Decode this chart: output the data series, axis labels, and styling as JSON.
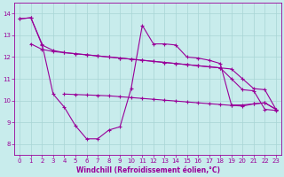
{
  "color": "#990099",
  "bg_color": "#c8ecec",
  "grid_color": "#a8d4d4",
  "xlabel": "Windchill (Refroidissement éolien,°C)",
  "ylim": [
    7.5,
    14.5
  ],
  "xlim": [
    -0.5,
    23.5
  ],
  "xticks": [
    0,
    1,
    2,
    3,
    4,
    5,
    6,
    7,
    8,
    9,
    10,
    11,
    12,
    13,
    14,
    15,
    16,
    17,
    18,
    19,
    20,
    21,
    22,
    23
  ],
  "yticks": [
    8,
    9,
    10,
    11,
    12,
    13,
    14
  ],
  "line_upper_x": [
    0,
    1,
    2,
    3,
    4,
    5,
    6,
    7,
    8,
    9,
    10,
    11,
    12,
    13,
    14,
    15,
    16,
    17,
    18,
    19,
    20,
    21,
    22,
    23
  ],
  "line_upper_y": [
    13.75,
    13.8,
    12.55,
    12.3,
    12.2,
    12.15,
    12.1,
    12.05,
    12.0,
    11.95,
    11.9,
    11.85,
    11.8,
    11.75,
    11.7,
    11.65,
    11.6,
    11.55,
    11.5,
    11.45,
    11.0,
    10.55,
    10.5,
    9.6
  ],
  "line_mid_x": [
    1,
    2,
    3,
    4,
    5,
    6,
    7,
    8,
    9,
    10,
    11,
    12,
    13,
    14,
    15,
    16,
    17,
    18,
    19,
    20,
    21,
    22,
    23
  ],
  "line_mid_y": [
    12.6,
    12.35,
    12.25,
    12.2,
    12.15,
    12.1,
    12.05,
    12.0,
    11.95,
    11.9,
    11.85,
    11.8,
    11.75,
    11.7,
    11.65,
    11.6,
    11.55,
    11.5,
    11.0,
    10.5,
    10.45,
    9.6,
    9.55
  ],
  "line_zigzag_x": [
    0,
    1,
    2,
    3,
    4,
    5,
    6,
    7,
    8,
    9,
    10,
    11,
    12,
    13,
    14,
    15,
    16,
    17,
    18,
    19,
    20,
    21,
    22,
    23
  ],
  "line_zigzag_y": [
    13.75,
    13.8,
    12.6,
    10.3,
    9.7,
    8.85,
    8.25,
    8.25,
    8.65,
    8.8,
    10.55,
    13.45,
    12.6,
    12.6,
    12.55,
    12.0,
    11.95,
    11.85,
    11.7,
    9.8,
    9.8,
    9.85,
    9.9,
    9.6
  ],
  "line_low_x": [
    4,
    5,
    6,
    7,
    8,
    9,
    10,
    11,
    12,
    13,
    14,
    15,
    16,
    17,
    18,
    19,
    20,
    21,
    22,
    23
  ],
  "line_low_y": [
    10.3,
    10.28,
    10.26,
    10.24,
    10.22,
    10.18,
    10.14,
    10.1,
    10.06,
    10.02,
    9.98,
    9.94,
    9.9,
    9.86,
    9.82,
    9.78,
    9.75,
    9.85,
    9.9,
    9.6
  ]
}
